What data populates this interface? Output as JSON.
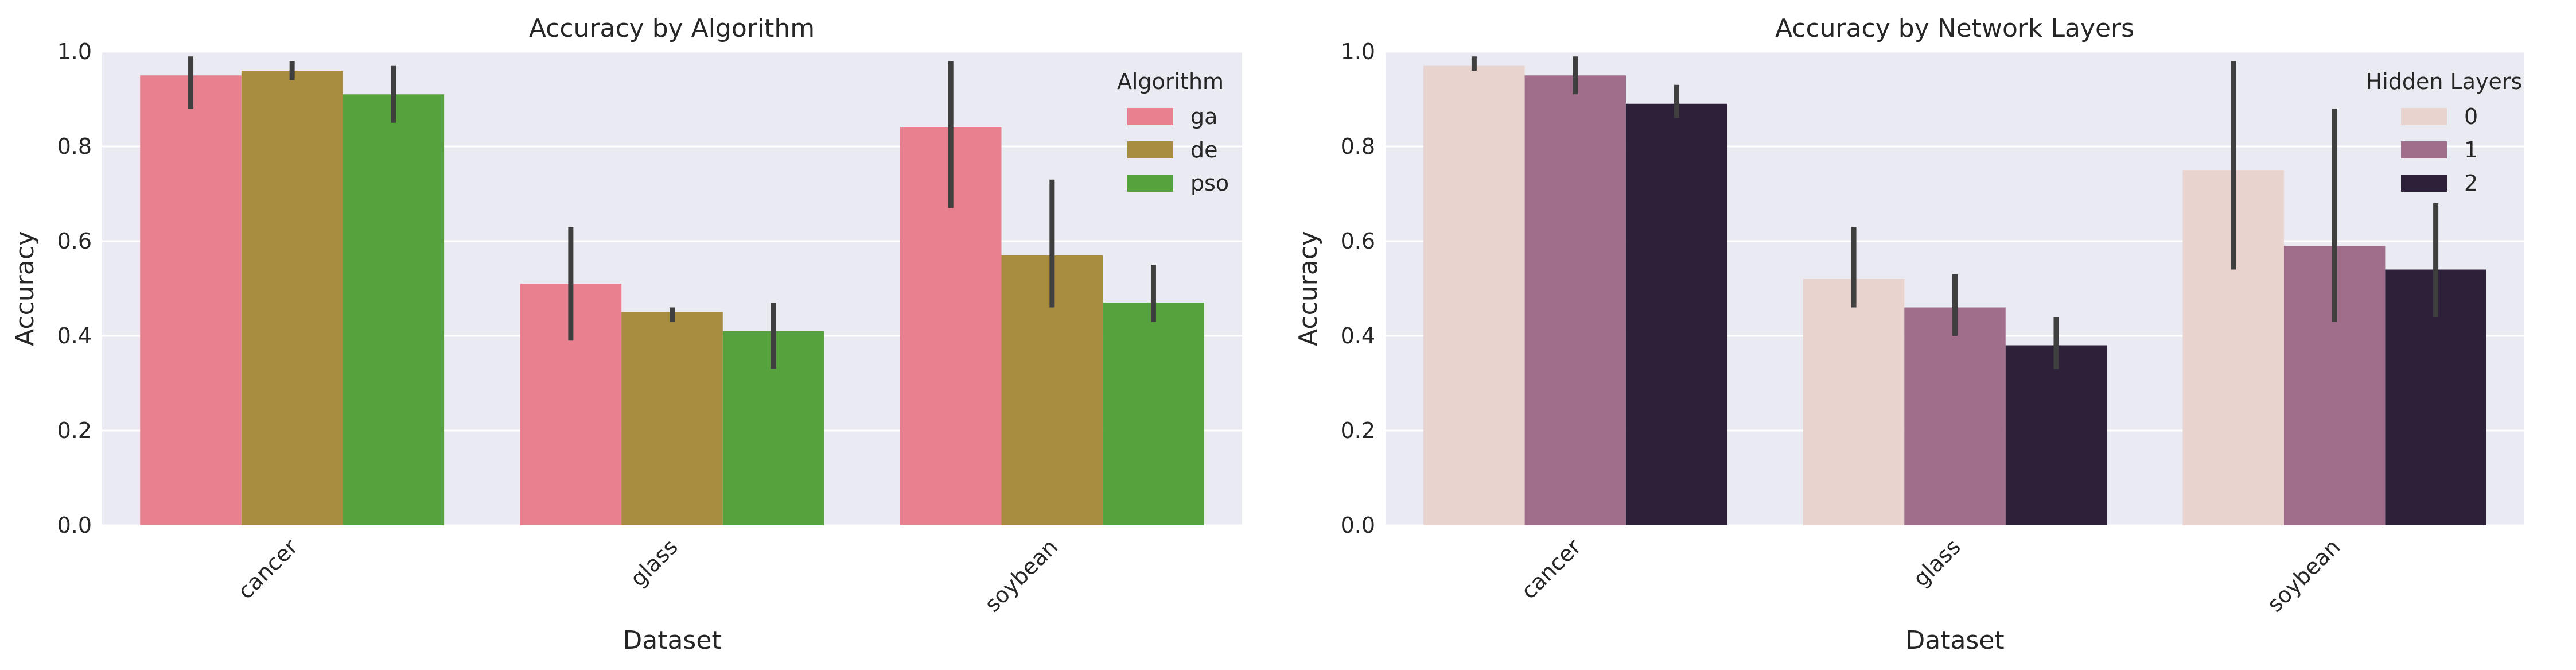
{
  "chart_data": [
    {
      "type": "bar",
      "title": "Accuracy by Algorithm",
      "xlabel": "Dataset",
      "ylabel": "Accuracy",
      "ylim": [
        0,
        1.0
      ],
      "yticks": [
        "0.0",
        "0.2",
        "0.4",
        "0.6",
        "0.8",
        "1.0"
      ],
      "categories": [
        "cancer",
        "glass",
        "soybean"
      ],
      "legend_title": "Algorithm",
      "legend_position": "top-right",
      "grid": true,
      "series": [
        {
          "name": "ga",
          "color": "#e8808f",
          "values": [
            0.95,
            0.51,
            0.84
          ],
          "err_low": [
            0.88,
            0.39,
            0.67
          ],
          "err_high": [
            0.99,
            0.63,
            0.98
          ]
        },
        {
          "name": "de",
          "color": "#a88c3f",
          "values": [
            0.96,
            0.45,
            0.57
          ],
          "err_low": [
            0.94,
            0.43,
            0.46
          ],
          "err_high": [
            0.98,
            0.46,
            0.73
          ]
        },
        {
          "name": "pso",
          "color": "#56a33e",
          "values": [
            0.91,
            0.41,
            0.47
          ],
          "err_low": [
            0.85,
            0.33,
            0.43
          ],
          "err_high": [
            0.97,
            0.47,
            0.55
          ]
        }
      ]
    },
    {
      "type": "bar",
      "title": "Accuracy by Network Layers",
      "xlabel": "Dataset",
      "ylabel": "Accuracy",
      "ylim": [
        0,
        1.0
      ],
      "yticks": [
        "0.0",
        "0.2",
        "0.4",
        "0.6",
        "0.8",
        "1.0"
      ],
      "categories": [
        "cancer",
        "glass",
        "soybean"
      ],
      "legend_title": "Hidden Layers",
      "legend_position": "top-right",
      "grid": true,
      "series": [
        {
          "name": "0",
          "color": "#e9d3cf",
          "values": [
            0.97,
            0.52,
            0.75
          ],
          "err_low": [
            0.96,
            0.46,
            0.54
          ],
          "err_high": [
            0.99,
            0.63,
            0.98
          ]
        },
        {
          "name": "1",
          "color": "#a06e8b",
          "values": [
            0.95,
            0.46,
            0.59
          ],
          "err_low": [
            0.91,
            0.4,
            0.43
          ],
          "err_high": [
            0.99,
            0.53,
            0.88
          ]
        },
        {
          "name": "2",
          "color": "#2d213a",
          "values": [
            0.89,
            0.38,
            0.54
          ],
          "err_low": [
            0.86,
            0.33,
            0.44
          ],
          "err_high": [
            0.93,
            0.44,
            0.68
          ]
        }
      ]
    }
  ]
}
